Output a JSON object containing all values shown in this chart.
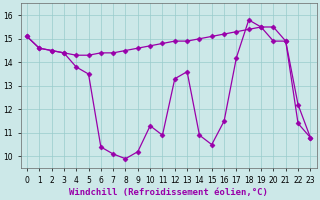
{
  "xlabel": "Windchill (Refroidissement éolien,°C)",
  "hours": [
    0,
    1,
    2,
    3,
    4,
    5,
    6,
    7,
    8,
    9,
    10,
    11,
    12,
    13,
    14,
    15,
    16,
    17,
    18,
    19,
    20,
    21,
    22,
    23
  ],
  "line1": [
    15.1,
    14.6,
    14.5,
    14.4,
    14.3,
    14.3,
    14.4,
    14.4,
    14.5,
    14.6,
    14.7,
    14.8,
    14.9,
    14.9,
    15.0,
    15.1,
    15.2,
    15.3,
    15.4,
    15.5,
    14.9,
    14.9,
    11.4,
    10.8
  ],
  "line2": [
    15.1,
    14.6,
    14.5,
    14.4,
    13.8,
    13.5,
    10.4,
    10.1,
    9.9,
    10.2,
    11.3,
    10.9,
    13.3,
    13.6,
    10.9,
    10.5,
    11.5,
    14.2,
    15.8,
    15.5,
    15.5,
    14.9,
    12.2,
    10.8
  ],
  "line_color": "#9900aa",
  "marker": "D",
  "marker_size": 2.5,
  "linewidth": 0.9,
  "bg_color": "#cce8e8",
  "grid_color": "#99cccc",
  "ylim": [
    9.5,
    16.5
  ],
  "yticks": [
    10,
    11,
    12,
    13,
    14,
    15,
    16
  ],
  "xlim": [
    -0.5,
    23.5
  ],
  "xticks": [
    0,
    1,
    2,
    3,
    4,
    5,
    6,
    7,
    8,
    9,
    10,
    11,
    12,
    13,
    14,
    15,
    16,
    17,
    18,
    19,
    20,
    21,
    22,
    23
  ],
  "tick_label_size": 5.5,
  "xlabel_size": 6.5
}
